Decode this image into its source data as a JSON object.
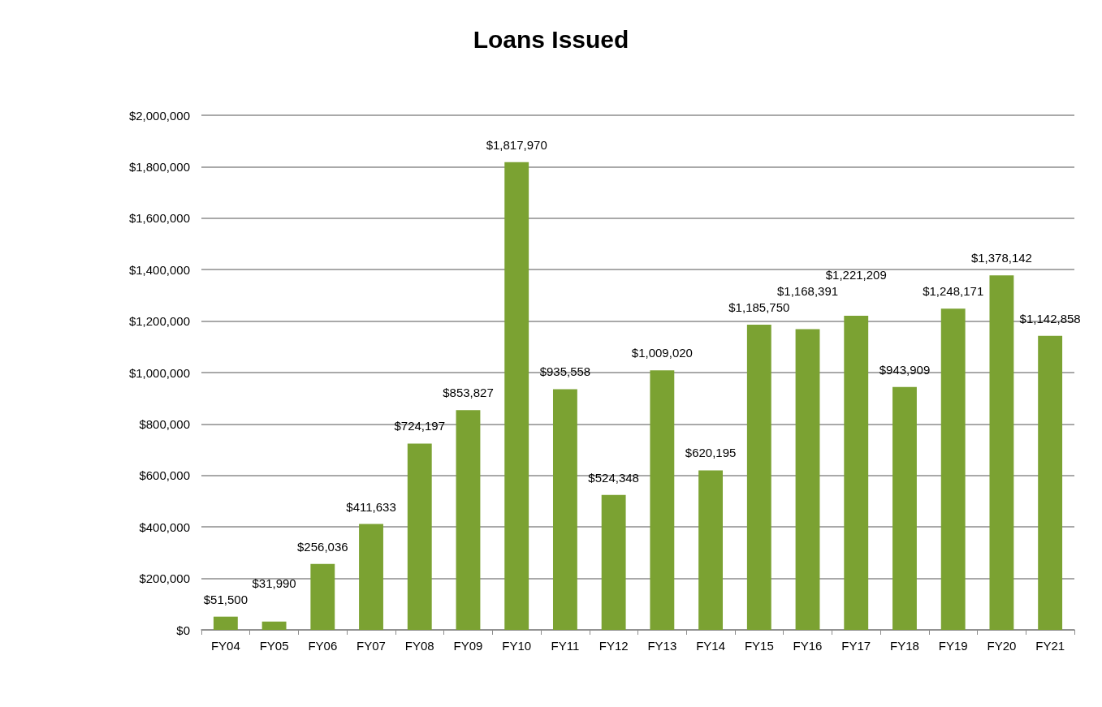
{
  "chart_data": {
    "type": "bar",
    "title": "Loans Issued",
    "categories": [
      "FY04",
      "FY05",
      "FY06",
      "FY07",
      "FY08",
      "FY09",
      "FY10",
      "FY11",
      "FY12",
      "FY13",
      "FY14",
      "FY15",
      "FY16",
      "FY17",
      "FY18",
      "FY19",
      "FY20",
      "FY21"
    ],
    "values": [
      51500,
      31990,
      256036,
      411633,
      724197,
      853827,
      1817970,
      935558,
      524348,
      1009020,
      620195,
      1185750,
      1168391,
      1221209,
      943909,
      1248171,
      1378142,
      1142858
    ],
    "value_labels": [
      "$51,500",
      "$31,990",
      "$256,036",
      "$411,633",
      "$724,197",
      "$853,827",
      "$1,817,970",
      "$935,558",
      "$524,348",
      "$1,009,020",
      "$620,195",
      "$1,185,750",
      "$1,168,391",
      "$1,221,209",
      "$943,909",
      "$1,248,171",
      "$1,378,142",
      "$1,142,858"
    ],
    "color": "#7ba232",
    "ylim": [
      0,
      2000000
    ],
    "yticks": [
      {
        "value": 0,
        "label": "$0"
      },
      {
        "value": 200000,
        "label": "$200,000"
      },
      {
        "value": 400000,
        "label": "$400,000"
      },
      {
        "value": 600000,
        "label": "$600,000"
      },
      {
        "value": 800000,
        "label": "$800,000"
      },
      {
        "value": 1000000,
        "label": "$1,000,000"
      },
      {
        "value": 1200000,
        "label": "$1,200,000"
      },
      {
        "value": 1400000,
        "label": "$1,400,000"
      },
      {
        "value": 1600000,
        "label": "$1,600,000"
      },
      {
        "value": 1800000,
        "label": "$1,800,000"
      },
      {
        "value": 2000000,
        "label": "$2,000,000"
      }
    ],
    "grid": "y"
  }
}
